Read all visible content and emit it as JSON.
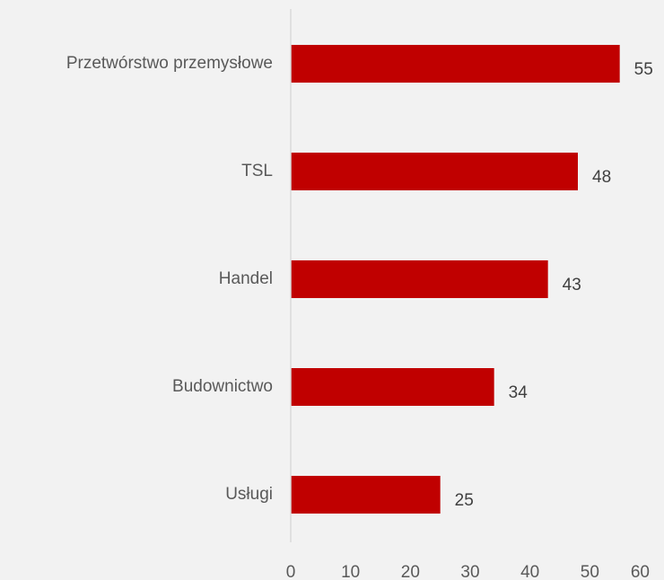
{
  "chart_data": {
    "type": "bar",
    "orientation": "horizontal",
    "categories": [
      "Przetwórstwo przemysłowe",
      "TSL",
      "Handel",
      "Budownictwo",
      "Usługi"
    ],
    "values": [
      55,
      48,
      43,
      34,
      25
    ],
    "title": "",
    "xlabel": "",
    "ylabel": "",
    "xlim": [
      0,
      60
    ],
    "x_ticks": [
      0,
      10,
      20,
      30,
      40,
      50,
      60
    ],
    "grid": false,
    "legend": "none",
    "data_labels": true
  },
  "colors": {
    "background": "#f2f2f2",
    "bar": "#c00000",
    "axis": "#d9d9d9",
    "category_text": "#595959",
    "value_text": "#404040"
  }
}
